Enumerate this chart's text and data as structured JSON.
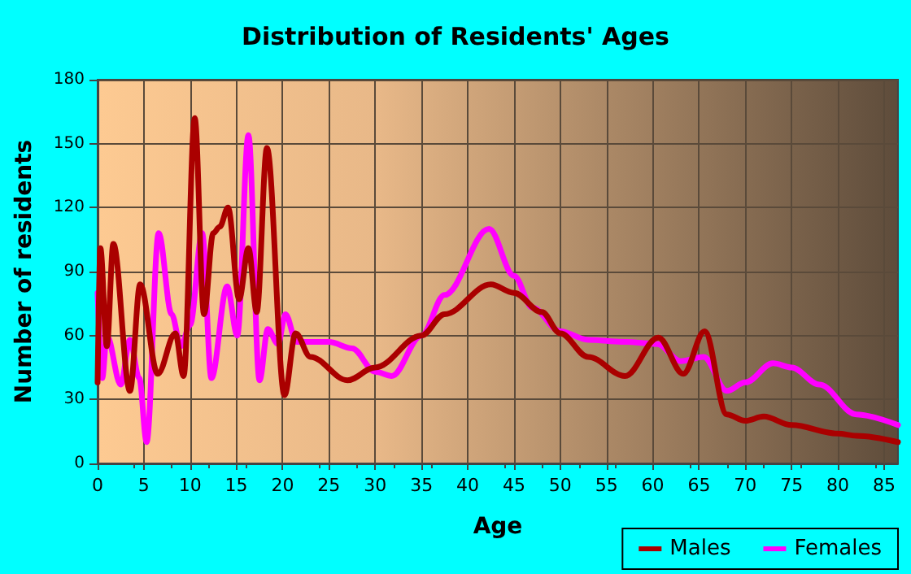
{
  "chart_data": {
    "type": "line",
    "title": "Distribution of Residents' Ages",
    "xlabel": "Age",
    "ylabel": "Number of residents",
    "xlim": [
      0,
      86.5
    ],
    "xticks": [
      0,
      5,
      10,
      15,
      20,
      25,
      30,
      35,
      40,
      45,
      50,
      55,
      60,
      65,
      70,
      75,
      80,
      85
    ],
    "ylim": [
      0,
      180
    ],
    "yticks": [
      0,
      30,
      60,
      90,
      120,
      150,
      180
    ],
    "grid": true,
    "legend": "bottom right",
    "marker": "none",
    "line_style": "solid",
    "series": [
      {
        "name": "Males",
        "color": "#aa0000",
        "x": [
          0,
          0.3,
          1,
          1.7,
          3.5,
          4.6,
          6.5,
          8.4,
          9.3,
          10.5,
          11.5,
          12.5,
          13.2,
          14.1,
          15.3,
          16.3,
          17.2,
          18.3,
          20.2,
          21.4,
          23,
          27,
          30,
          35,
          37.5,
          42.5,
          45,
          48,
          50,
          53,
          57,
          60.6,
          63.3,
          65.6,
          68,
          70,
          72,
          75,
          80,
          82,
          86.5
        ],
        "values": [
          38,
          101,
          55,
          103,
          34,
          84,
          42,
          61,
          41,
          162,
          70,
          108,
          111,
          120,
          77,
          101,
          71,
          148,
          32,
          61,
          50,
          39,
          45,
          60,
          70,
          84,
          80,
          71,
          61,
          50,
          41,
          59,
          42,
          62,
          23,
          20,
          22,
          18,
          14,
          13,
          10
        ]
      },
      {
        "name": "Females",
        "color": "#ff00ff",
        "x": [
          0,
          0.5,
          1,
          2.5,
          3.5,
          4.5,
          5.3,
          6.6,
          8,
          9,
          10,
          11.3,
          12.3,
          14,
          15.1,
          16.3,
          17.5,
          18.4,
          19.5,
          20.3,
          21.5,
          25,
          27.5,
          30,
          31.8,
          35,
          37.5,
          42.3,
          45,
          47,
          50,
          53,
          57,
          60.5,
          63,
          65.5,
          68,
          70,
          73,
          75,
          78,
          82,
          86.5
        ],
        "values": [
          80,
          40,
          60,
          37,
          58,
          40,
          10,
          108,
          70,
          55,
          65,
          108,
          40,
          83,
          60,
          154,
          39,
          63,
          56,
          70,
          57,
          57,
          54,
          43,
          41,
          60,
          79,
          110,
          88,
          73,
          62,
          58,
          57,
          56,
          48,
          50,
          34,
          38,
          47,
          45,
          37,
          23,
          18
        ]
      }
    ]
  }
}
